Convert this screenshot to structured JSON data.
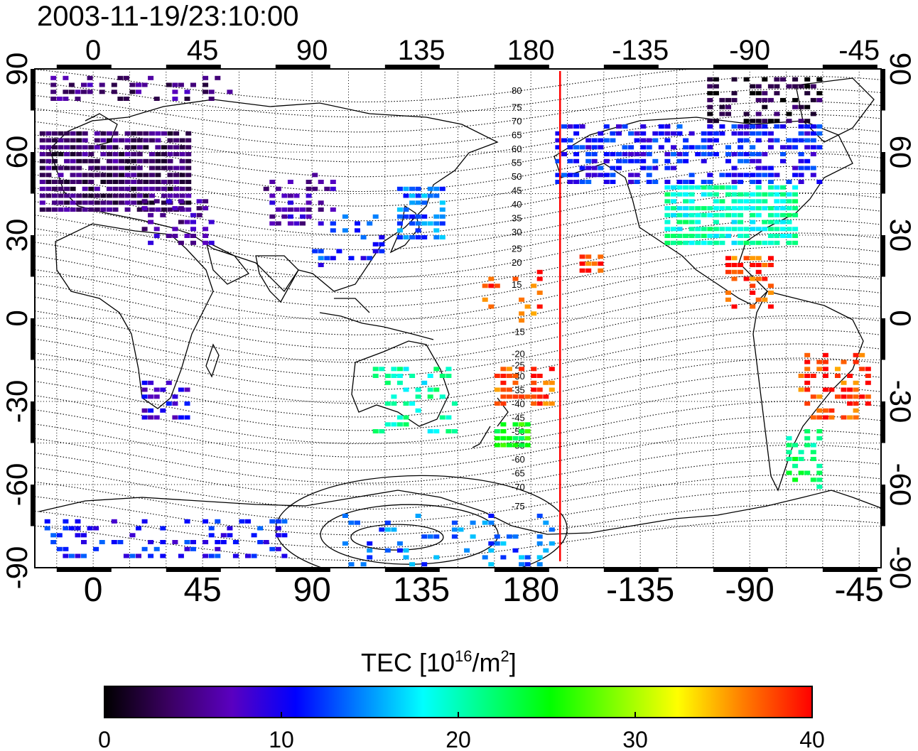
{
  "title": "2003-11-19/23:10:00",
  "map": {
    "lon_ticks_top": [
      "0",
      "45",
      "90",
      "135",
      "180",
      "-135",
      "-90",
      "-45"
    ],
    "lon_ticks_bottom": [
      "0",
      "45",
      "90",
      "135",
      "180",
      "-135",
      "-90",
      "-45"
    ],
    "lat_ticks": [
      "90",
      "60",
      "30",
      "0",
      "-30",
      "-60",
      "-90"
    ],
    "lon_range_deg": [
      -24,
      324
    ],
    "lat_range_deg": [
      -90,
      90
    ],
    "lon_tick_values": [
      0,
      45,
      90,
      135,
      180,
      225,
      270,
      315
    ],
    "lat_tick_values": [
      90,
      60,
      30,
      0,
      -30,
      -60,
      -90
    ],
    "terminator_lon": 192,
    "grid": "dotted",
    "contour_labels": [
      "80",
      "75",
      "70",
      "65",
      "60",
      "55",
      "50",
      "45",
      "40",
      "35",
      "30",
      "25",
      "20",
      "15",
      "-15",
      "-20",
      "-25",
      "-30",
      "-35",
      "-40",
      "-45",
      "-50",
      "-55",
      "-60",
      "-65",
      "-70",
      "-75"
    ],
    "contour_label_lats": [
      82,
      76,
      71,
      66,
      61,
      56,
      51,
      46,
      41,
      36,
      31,
      25,
      20,
      12,
      -5,
      -13,
      -17,
      -21,
      -26,
      -31,
      -36,
      -41,
      -46,
      -51,
      -56,
      -61,
      -68
    ]
  },
  "colorbar": {
    "label_prefix": "TEC  [10",
    "label_exp": "16",
    "label_mid": "/m",
    "label_exp2": "2",
    "label_suffix": "]",
    "ticks": [
      "0",
      "10",
      "20",
      "30",
      "40"
    ],
    "tick_values": [
      0,
      10,
      20,
      30,
      40
    ],
    "range": [
      0,
      40
    ],
    "colors": [
      "#000000",
      "#3a0060",
      "#5a00c0",
      "#0000ff",
      "#0080ff",
      "#00ffff",
      "#00ff80",
      "#00ff00",
      "#80ff00",
      "#ffff00",
      "#ff8000",
      "#ff0000"
    ]
  },
  "tec_regions": [
    {
      "lon": [
        -22,
        40
      ],
      "lat": [
        40,
        68
      ],
      "value": 4,
      "density": 0.9
    },
    {
      "lon": [
        20,
        50
      ],
      "lat": [
        28,
        45
      ],
      "value": 6,
      "density": 0.5
    },
    {
      "lon": [
        70,
        100
      ],
      "lat": [
        35,
        55
      ],
      "value": 7,
      "density": 0.35
    },
    {
      "lon": [
        125,
        145
      ],
      "lat": [
        30,
        50
      ],
      "value": 14,
      "density": 0.7
    },
    {
      "lon": [
        90,
        120
      ],
      "lat": [
        20,
        40
      ],
      "value": 12,
      "density": 0.3
    },
    {
      "lon": [
        -170,
        -60
      ],
      "lat": [
        50,
        72
      ],
      "value": 11,
      "density": 0.6
    },
    {
      "lon": [
        -125,
        -70
      ],
      "lat": [
        28,
        50
      ],
      "value": 20,
      "density": 0.85
    },
    {
      "lon": [
        -110,
        -60
      ],
      "lat": [
        72,
        88
      ],
      "value": 2,
      "density": 0.5
    },
    {
      "lon": [
        -100,
        -80
      ],
      "lat": [
        5,
        25
      ],
      "value": 38,
      "density": 0.6
    },
    {
      "lon": [
        -70,
        -40
      ],
      "lat": [
        -35,
        -10
      ],
      "value": 38,
      "density": 0.5
    },
    {
      "lon": [
        -75,
        -60
      ],
      "lat": [
        -60,
        -38
      ],
      "value": 22,
      "density": 0.5
    },
    {
      "lon": [
        115,
        150
      ],
      "lat": [
        -40,
        -15
      ],
      "value": 20,
      "density": 0.35
    },
    {
      "lon": [
        165,
        180
      ],
      "lat": [
        -45,
        -35
      ],
      "value": 25,
      "density": 0.7
    },
    {
      "lon": [
        165,
        190
      ],
      "lat": [
        -30,
        -15
      ],
      "value": 38,
      "density": 0.55
    },
    {
      "lon": [
        160,
        185
      ],
      "lat": [
        0,
        20
      ],
      "value": 38,
      "density": 0.3
    },
    {
      "lon": [
        -160,
        -150
      ],
      "lat": [
        18,
        25
      ],
      "value": 38,
      "density": 0.6
    },
    {
      "lon": [
        20,
        40
      ],
      "lat": [
        -35,
        -20
      ],
      "value": 9,
      "density": 0.5
    },
    {
      "lon": [
        -20,
        80
      ],
      "lat": [
        -85,
        -72
      ],
      "value": 11,
      "density": 0.3
    },
    {
      "lon": [
        100,
        190
      ],
      "lat": [
        -88,
        -70
      ],
      "value": 14,
      "density": 0.2
    },
    {
      "lon": [
        -20,
        60
      ],
      "lat": [
        80,
        90
      ],
      "value": 5,
      "density": 0.3
    }
  ]
}
